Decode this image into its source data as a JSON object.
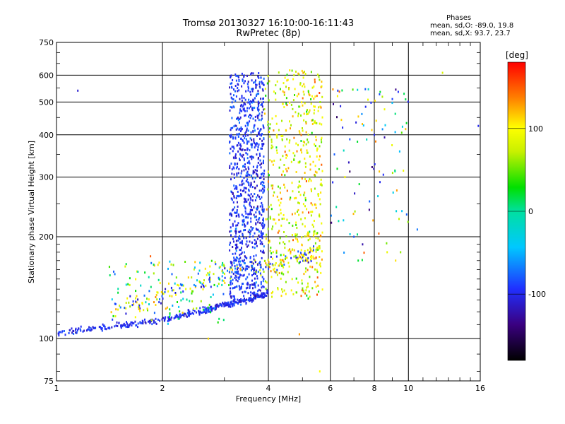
{
  "chart_data": {
    "type": "scatter",
    "title": "Tromsø 20130327 16:10:00-16:11:43",
    "subtitle": "RwPretec (8p)",
    "xlabel": "Frequency [MHz]",
    "ylabel": "Stationary phase Virtual Height [km]",
    "xscale": "log",
    "yscale": "log",
    "xlim": [
      1,
      16
    ],
    "ylim": [
      75,
      750
    ],
    "xticks": [
      1,
      2,
      4,
      6,
      8,
      10,
      16
    ],
    "xtick_labels": [
      "1",
      "2",
      "4",
      "6",
      "8",
      "10",
      "16"
    ],
    "yticks": [
      75,
      100,
      200,
      300,
      400,
      500,
      600,
      750
    ],
    "ytick_labels": [
      "75",
      "100",
      "200",
      "300",
      "400",
      "500",
      "600",
      "750"
    ],
    "grid": true,
    "stats": {
      "heading": "Phases",
      "line_o": "mean, sd,O: -89.0, 19.8",
      "line_x": "mean, sd,X:  93.7, 23.7"
    },
    "colorbar": {
      "label": "[deg]",
      "range": [
        -180,
        180
      ],
      "ticks": [
        100,
        0,
        -100
      ],
      "tick_labels": [
        "100",
        "0",
        "-100"
      ]
    },
    "trace_o": [
      [
        1.0,
        103
      ],
      [
        1.05,
        104
      ],
      [
        1.1,
        105
      ],
      [
        1.2,
        106
      ],
      [
        1.3,
        107
      ],
      [
        1.4,
        108
      ],
      [
        1.5,
        109
      ],
      [
        1.6,
        110
      ],
      [
        1.7,
        111
      ],
      [
        1.8,
        112
      ],
      [
        1.9,
        113
      ],
      [
        2.0,
        114
      ],
      [
        2.1,
        115
      ],
      [
        2.2,
        116
      ],
      [
        2.3,
        118
      ],
      [
        2.5,
        120
      ],
      [
        2.7,
        122
      ],
      [
        2.9,
        125
      ],
      [
        3.1,
        127
      ],
      [
        3.3,
        128
      ],
      [
        3.5,
        130
      ],
      [
        3.7,
        132
      ],
      [
        3.9,
        135
      ],
      [
        4.0,
        138
      ]
    ],
    "trace_x": [
      [
        1.4,
        120
      ],
      [
        1.6,
        124
      ],
      [
        1.8,
        128
      ],
      [
        2.0,
        134
      ],
      [
        2.2,
        140
      ],
      [
        2.4,
        142
      ],
      [
        2.6,
        145
      ],
      [
        2.8,
        150
      ],
      [
        3.0,
        155
      ],
      [
        3.2,
        158
      ],
      [
        3.5,
        160
      ],
      [
        3.8,
        162
      ],
      [
        4.2,
        164
      ],
      [
        4.6,
        170
      ],
      [
        5.0,
        175
      ],
      [
        5.4,
        178
      ],
      [
        5.6,
        180
      ]
    ],
    "layer_f_o": {
      "f_range": [
        3.1,
        3.9
      ],
      "h_range": [
        130,
        610
      ],
      "phase": -95
    },
    "layer_f_x": {
      "f_range": [
        3.9,
        5.7
      ],
      "h_range": [
        130,
        620
      ],
      "phase": 90
    },
    "sparse": [
      [
        1.15,
        540,
        -110
      ],
      [
        1.85,
        175,
        150
      ],
      [
        2.7,
        100,
        110
      ],
      [
        4.9,
        103,
        130
      ],
      [
        5.6,
        80,
        100
      ],
      [
        6.3,
        540,
        -90
      ],
      [
        6.5,
        420,
        -100
      ],
      [
        6.6,
        300,
        100
      ],
      [
        7.0,
        200,
        -80
      ],
      [
        7.2,
        170,
        20
      ],
      [
        8.0,
        400,
        -100
      ],
      [
        8.1,
        440,
        110
      ],
      [
        8.3,
        290,
        -100
      ],
      [
        8.7,
        180,
        90
      ],
      [
        9.0,
        510,
        -90
      ],
      [
        9.2,
        170,
        110
      ],
      [
        9.5,
        180,
        60
      ],
      [
        10.6,
        210,
        -70
      ],
      [
        12.5,
        610,
        80
      ],
      [
        15.8,
        425,
        -100
      ]
    ]
  }
}
